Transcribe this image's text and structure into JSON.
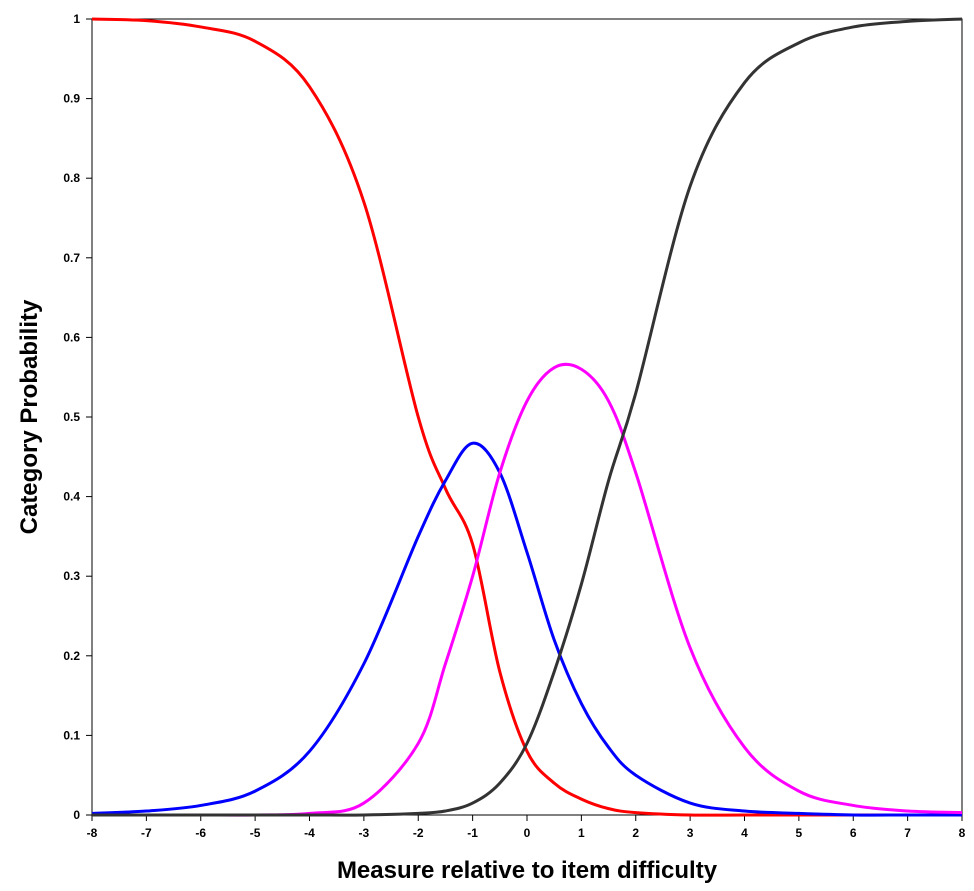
{
  "chart_data": {
    "type": "line",
    "title": "",
    "xlabel": "Measure relative to item difficulty",
    "ylabel": "Category Probability",
    "xlim": [
      -8,
      8
    ],
    "ylim": [
      0,
      1
    ],
    "x_ticks": [
      "-8",
      "-7",
      "-6",
      "-5",
      "-4",
      "-3",
      "-2",
      "-1",
      "0",
      "1",
      "2",
      "3",
      "4",
      "5",
      "6",
      "7",
      "8"
    ],
    "y_ticks": [
      "0",
      "0.1",
      "0.2",
      "0.3",
      "0.4",
      "0.5",
      "0.6",
      "0.7",
      "0.8",
      "0.9",
      "1"
    ],
    "grid": false,
    "legend": "none",
    "x": [
      -8,
      -7,
      -6,
      -5,
      -4,
      -3,
      -2,
      -1.5,
      -1,
      -0.5,
      0,
      0.5,
      1,
      1.5,
      2,
      3,
      4,
      5,
      6,
      7,
      8
    ],
    "series": [
      {
        "color": "#ff0000",
        "values": [
          1.0,
          0.998,
          0.99,
          0.972,
          0.915,
          0.77,
          0.5,
          0.41,
          0.34,
          0.18,
          0.08,
          0.04,
          0.02,
          0.008,
          0.003,
          0.0,
          0.0,
          0.0,
          0.0,
          0.0,
          0.0
        ]
      },
      {
        "color": "#0000ff",
        "values": [
          0.002,
          0.005,
          0.012,
          0.03,
          0.08,
          0.19,
          0.35,
          0.42,
          0.467,
          0.43,
          0.33,
          0.22,
          0.14,
          0.085,
          0.05,
          0.015,
          0.005,
          0.002,
          0.0,
          0.0,
          0.0
        ]
      },
      {
        "color": "#ff00ff",
        "values": [
          0.0,
          0.0,
          0.0,
          0.0,
          0.002,
          0.015,
          0.09,
          0.19,
          0.3,
          0.43,
          0.52,
          0.562,
          0.56,
          0.52,
          0.43,
          0.21,
          0.085,
          0.03,
          0.012,
          0.005,
          0.003
        ]
      },
      {
        "color": "#333333",
        "values": [
          0.0,
          0.0,
          0.0,
          0.0,
          0.0,
          0.0,
          0.002,
          0.005,
          0.015,
          0.04,
          0.09,
          0.18,
          0.29,
          0.42,
          0.53,
          0.79,
          0.92,
          0.97,
          0.99,
          0.997,
          1.0
        ]
      }
    ]
  }
}
